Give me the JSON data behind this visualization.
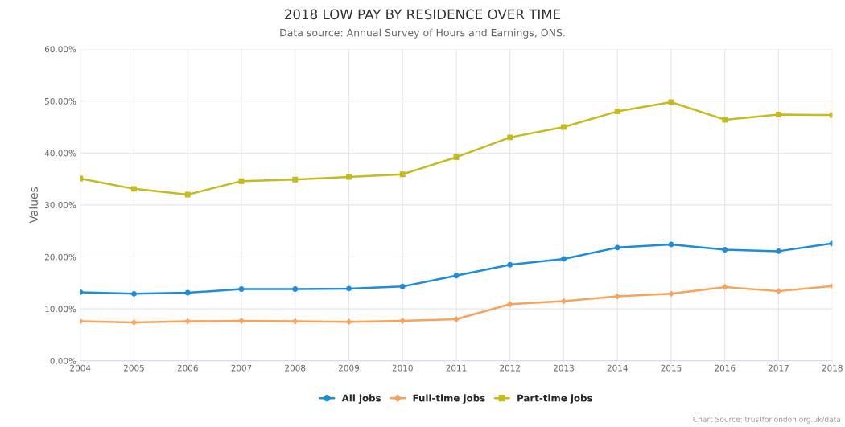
{
  "chart_data": {
    "type": "line",
    "title": "2018 LOW PAY BY RESIDENCE OVER TIME",
    "subtitle": "Data source: Annual Survey of Hours and Earnings, ONS.",
    "ylabel": "Values",
    "x": [
      2004,
      2005,
      2006,
      2007,
      2008,
      2009,
      2010,
      2011,
      2012,
      2013,
      2014,
      2015,
      2016,
      2017,
      2018
    ],
    "xlim": [
      2004,
      2018
    ],
    "xticks": [
      2004,
      2005,
      2006,
      2007,
      2008,
      2009,
      2010,
      2011,
      2012,
      2013,
      2014,
      2015,
      2016,
      2017,
      2018
    ],
    "ylim": [
      0,
      60
    ],
    "yticks": [
      {
        "value": 0,
        "label": "0.00%"
      },
      {
        "value": 10,
        "label": "10.00%"
      },
      {
        "value": 20,
        "label": "20.00%"
      },
      {
        "value": 30,
        "label": "30.00%"
      },
      {
        "value": 40,
        "label": "40.00%"
      },
      {
        "value": 50,
        "label": "50.00%"
      },
      {
        "value": 60,
        "label": "60.00%"
      }
    ],
    "grid": true,
    "legend": "bottom",
    "series": [
      {
        "name": "All jobs",
        "color": "#1f8dd6",
        "marker": "circle",
        "values": [
          13.2,
          12.9,
          13.1,
          13.8,
          13.8,
          13.9,
          14.3,
          16.4,
          18.5,
          19.6,
          21.8,
          22.4,
          21.4,
          21.1,
          22.6
        ]
      },
      {
        "name": "Full-time jobs",
        "color": "#f7a35c",
        "marker": "diamond",
        "values": [
          7.6,
          7.4,
          7.6,
          7.7,
          7.6,
          7.5,
          7.7,
          8.0,
          10.9,
          11.5,
          12.4,
          12.9,
          14.2,
          13.4,
          14.4
        ]
      },
      {
        "name": "Part-time jobs",
        "color": "#c5bb1e",
        "marker": "square",
        "values": [
          35.1,
          33.1,
          32.0,
          34.6,
          34.9,
          35.4,
          35.9,
          39.2,
          43.0,
          45.0,
          48.0,
          49.8,
          46.4,
          47.4,
          47.3
        ]
      }
    ],
    "annotations": [
      "Chart Source: trustforlondon.org.uk/data"
    ]
  }
}
